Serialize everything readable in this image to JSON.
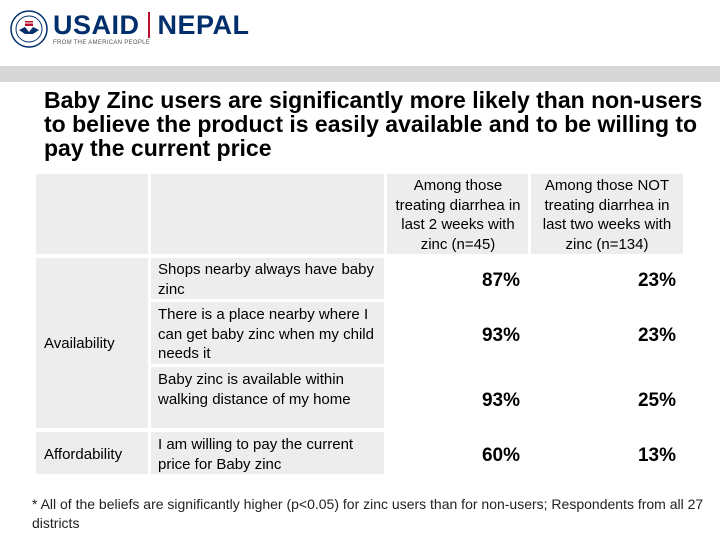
{
  "brand": {
    "usaid": "USAID",
    "country": "NEPAL",
    "tagline": "FROM THE AMERICAN PEOPLE"
  },
  "title": "Baby Zinc users are significantly more likely than non-users to believe the product is easily available and to be willing to pay the current price",
  "table": {
    "headers": [
      "Among those treating diarrhea in last 2 weeks with zinc (n=45)",
      "Among those NOT treating diarrhea in last two weeks with zinc (n=134)"
    ],
    "categories": [
      "Availability",
      "Affordability"
    ],
    "rows": [
      {
        "statement": "Shops nearby always have baby zinc",
        "users": "87%",
        "non_users": "23%"
      },
      {
        "statement": "There is a place nearby where I can get baby zinc when my child needs it",
        "users": "93%",
        "non_users": "23%"
      },
      {
        "statement": "Baby zinc is available within walking distance of my home",
        "users": "93%",
        "non_users": "25%"
      },
      {
        "statement": "I am willing to pay the current price for Baby zinc",
        "users": "60%",
        "non_users": "13%"
      }
    ]
  },
  "footnote": "*  All of the beliefs are significantly higher (p<0.05) for zinc users than for non-users; Respondents from all  27 districts"
}
